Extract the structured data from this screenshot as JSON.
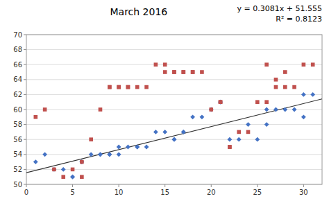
{
  "chart_data": {
    "type": "scatter",
    "title": "March 2016",
    "annotations": [
      "y = 0.3081x + 51.555",
      "R² = 0.8123"
    ],
    "xlim": [
      0,
      32
    ],
    "ylim": [
      50,
      70
    ],
    "xticks": [
      0,
      5,
      10,
      15,
      20,
      25,
      30
    ],
    "yticks": [
      50,
      52,
      54,
      56,
      58,
      60,
      62,
      64,
      66,
      68,
      70
    ],
    "grid": true,
    "series": [
      {
        "type": "scatter",
        "marker": "diamond",
        "color": "#4472C4",
        "x": [
          1,
          2,
          3,
          4,
          5,
          5,
          6,
          6,
          7,
          8,
          8,
          9,
          9,
          10,
          10,
          11,
          12,
          12,
          13,
          14,
          15,
          16,
          16,
          17,
          17,
          18,
          19,
          20,
          21,
          21,
          22,
          23,
          24,
          25,
          26,
          26,
          27,
          28,
          29,
          30,
          30,
          31
        ],
        "values": [
          53,
          54,
          52,
          52,
          51,
          51,
          53,
          53,
          54,
          54,
          54,
          54,
          54,
          54,
          55,
          55,
          55,
          55,
          55,
          57,
          57,
          56,
          56,
          57,
          57,
          59,
          59,
          60,
          61,
          61,
          56,
          56,
          58,
          56,
          58,
          60,
          60,
          60,
          60,
          59,
          62,
          62
        ]
      },
      {
        "type": "scatter",
        "marker": "square",
        "color": "#C0504D",
        "x": [
          1,
          2,
          3,
          4,
          5,
          6,
          6,
          7,
          8,
          9,
          9,
          10,
          10,
          11,
          11,
          12,
          13,
          14,
          15,
          15,
          16,
          16,
          17,
          17,
          18,
          18,
          19,
          20,
          21,
          21,
          22,
          22,
          23,
          24,
          25,
          26,
          26,
          27,
          27,
          28,
          28,
          29,
          30,
          31
        ],
        "values": [
          59,
          60,
          52,
          51,
          52,
          51,
          53,
          56,
          60,
          63,
          63,
          63,
          63,
          63,
          63,
          63,
          63,
          66,
          66,
          65,
          65,
          65,
          65,
          65,
          65,
          65,
          65,
          60,
          61,
          61,
          55,
          55,
          57,
          57,
          61,
          61,
          66,
          64,
          63,
          65,
          63,
          63,
          66,
          66
        ]
      },
      {
        "type": "line",
        "color": "#303030",
        "x": [
          0,
          32
        ],
        "values": [
          51.555,
          61.4142
        ]
      }
    ]
  }
}
